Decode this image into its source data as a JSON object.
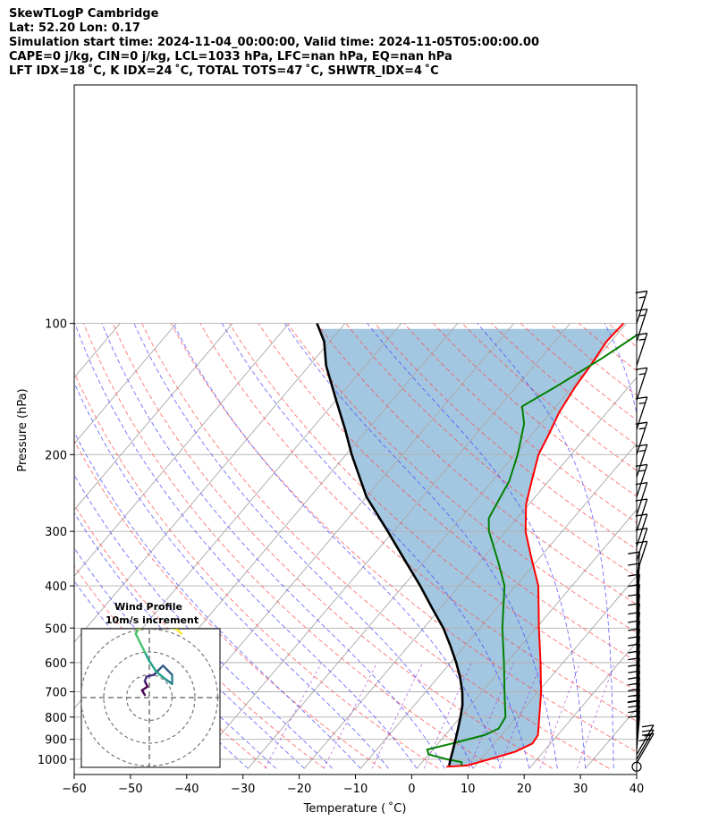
{
  "header": {
    "line1": "SkewTLogP Cambridge",
    "line2": "Lat: 52.20   Lon: 0.17",
    "line3": "Simulation start time: 2024-11-04_00:00:00, Valid time: 2024-11-05T05:00:00.00",
    "line4": "CAPE=0 j/kg, CIN=0 j/kg, LCL=1033 hPa, LFC=nan hPa, EQ=nan hPa",
    "line5": "LFT IDX=18 ˚C, K IDX=24 ˚C, TOTAL TOTS=47 ˚C, SHWTR_IDX=4 ˚C"
  },
  "chart_data": {
    "type": "line",
    "subtype": "skew-T log-p",
    "xlabel": "Temperature ( ˚C)",
    "ylabel": "Pressure (hPa)",
    "xlim": [
      -60,
      40
    ],
    "ylim_hpa": [
      1050,
      100
    ],
    "y_scale": "log",
    "x_ticks": [
      -60,
      -50,
      -40,
      -30,
      -20,
      -10,
      0,
      10,
      20,
      30,
      40
    ],
    "x_tick_labels": [
      "−60",
      "−50",
      "−40",
      "−30",
      "−20",
      "−10",
      "0",
      "10",
      "20",
      "30",
      "40"
    ],
    "y_ticks": [
      1000,
      900,
      800,
      700,
      600,
      500,
      400,
      300,
      200,
      100
    ],
    "y_tick_labels": [
      "1000",
      "900",
      "800",
      "700",
      "600",
      "500",
      "400",
      "300",
      "200",
      "100"
    ],
    "grid": true,
    "series": [
      {
        "role": "temperature",
        "color": "#ff0000",
        "points": [
          [
            1040,
            5
          ],
          [
            1033,
            8.5
          ],
          [
            1000,
            11.5
          ],
          [
            960,
            15
          ],
          [
            920,
            16.8
          ],
          [
            880,
            16.5
          ],
          [
            800,
            14
          ],
          [
            700,
            10.5
          ],
          [
            600,
            6
          ],
          [
            500,
            0.5
          ],
          [
            400,
            -6
          ],
          [
            340,
            -12
          ],
          [
            300,
            -16.5
          ],
          [
            260,
            -20.5
          ],
          [
            230,
            -23
          ],
          [
            200,
            -25.8
          ],
          [
            180,
            -27
          ],
          [
            160,
            -28.5
          ],
          [
            140,
            -29.5
          ],
          [
            125,
            -30
          ],
          [
            110,
            -30.8
          ],
          [
            100,
            -30.5
          ]
        ]
      },
      {
        "role": "dewpoint",
        "color": "#008000",
        "points": [
          [
            1033,
            7.5
          ],
          [
            1015,
            7
          ],
          [
            1000,
            4
          ],
          [
            975,
            0
          ],
          [
            950,
            -1
          ],
          [
            920,
            2.5
          ],
          [
            880,
            7
          ],
          [
            850,
            8.5
          ],
          [
            800,
            8
          ],
          [
            700,
            4
          ],
          [
            600,
            -0.5
          ],
          [
            500,
            -6
          ],
          [
            400,
            -12
          ],
          [
            350,
            -17
          ],
          [
            300,
            -23
          ],
          [
            280,
            -25
          ],
          [
            230,
            -27
          ],
          [
            200,
            -29.5
          ],
          [
            170,
            -33
          ],
          [
            155,
            -36
          ],
          [
            140,
            -33
          ],
          [
            120,
            -29
          ],
          [
            100,
            -25
          ]
        ]
      },
      {
        "role": "parcel",
        "color": "#000000",
        "points": [
          [
            1033,
            5.3
          ],
          [
            1000,
            4.6
          ],
          [
            950,
            3.6
          ],
          [
            900,
            2.5
          ],
          [
            850,
            1.3
          ],
          [
            800,
            0
          ],
          [
            750,
            -1.5
          ],
          [
            700,
            -3.5
          ],
          [
            650,
            -6
          ],
          [
            600,
            -9
          ],
          [
            550,
            -12.5
          ],
          [
            500,
            -16.5
          ],
          [
            450,
            -21.5
          ],
          [
            400,
            -27
          ],
          [
            350,
            -33.5
          ],
          [
            300,
            -41
          ],
          [
            250,
            -50
          ],
          [
            200,
            -59
          ],
          [
            175,
            -64
          ],
          [
            150,
            -70
          ],
          [
            125,
            -77
          ],
          [
            110,
            -81
          ],
          [
            100,
            -85
          ]
        ]
      }
    ],
    "reference_lines": {
      "skewed_isotherms": "gray",
      "dry_adiabats": "red dashed",
      "moist_adiabats": "blue dashed",
      "mixing_ratio": "purple dashed"
    },
    "shading": "area between temperature and parcel, steelblue",
    "wind_barbs": {
      "pressures_hpa": [
        1040,
        1020,
        1000,
        975,
        950,
        925,
        900,
        875,
        850,
        825,
        800,
        775,
        750,
        725,
        700,
        675,
        650,
        625,
        600,
        575,
        550,
        525,
        500,
        475,
        450,
        425,
        400,
        375,
        350,
        325,
        300,
        275,
        250,
        225,
        200,
        175,
        150,
        125,
        110,
        100
      ],
      "speed_kt": [
        0,
        20,
        15,
        10,
        10,
        10,
        10,
        10,
        20,
        15,
        15,
        15,
        10,
        10,
        10,
        10,
        10,
        10,
        10,
        10,
        10,
        10,
        10,
        10,
        10,
        10,
        10,
        10,
        10,
        10,
        10,
        10,
        15,
        15,
        15,
        15,
        15,
        15,
        15,
        15
      ]
    },
    "inset": {
      "title": "Wind Profile",
      "subtitle": "10m/s increment",
      "type": "hodograph",
      "rings": 3,
      "points_ms": [
        [
          -0.5,
          0.3
        ],
        [
          -0.8,
          0.8
        ],
        [
          -0.2,
          1.2
        ],
        [
          -0.5,
          1.8
        ],
        [
          -0.3,
          2.3
        ],
        [
          0.5,
          2.5
        ],
        [
          1.0,
          3.0
        ],
        [
          1.5,
          3.5
        ],
        [
          2.0,
          3.0
        ],
        [
          2.5,
          2.5
        ],
        [
          2.5,
          1.5
        ],
        [
          1.8,
          2.0
        ],
        [
          0.8,
          2.8
        ],
        [
          0,
          4.0
        ],
        [
          -0.5,
          5.0
        ],
        [
          -1.0,
          6.0
        ],
        [
          -1.5,
          7.0
        ],
        [
          -1.2,
          7.5
        ],
        [
          0,
          8.0
        ],
        [
          1.5,
          7.8
        ],
        [
          3.0,
          7.5
        ],
        [
          3.5,
          7.0
        ]
      ]
    }
  }
}
